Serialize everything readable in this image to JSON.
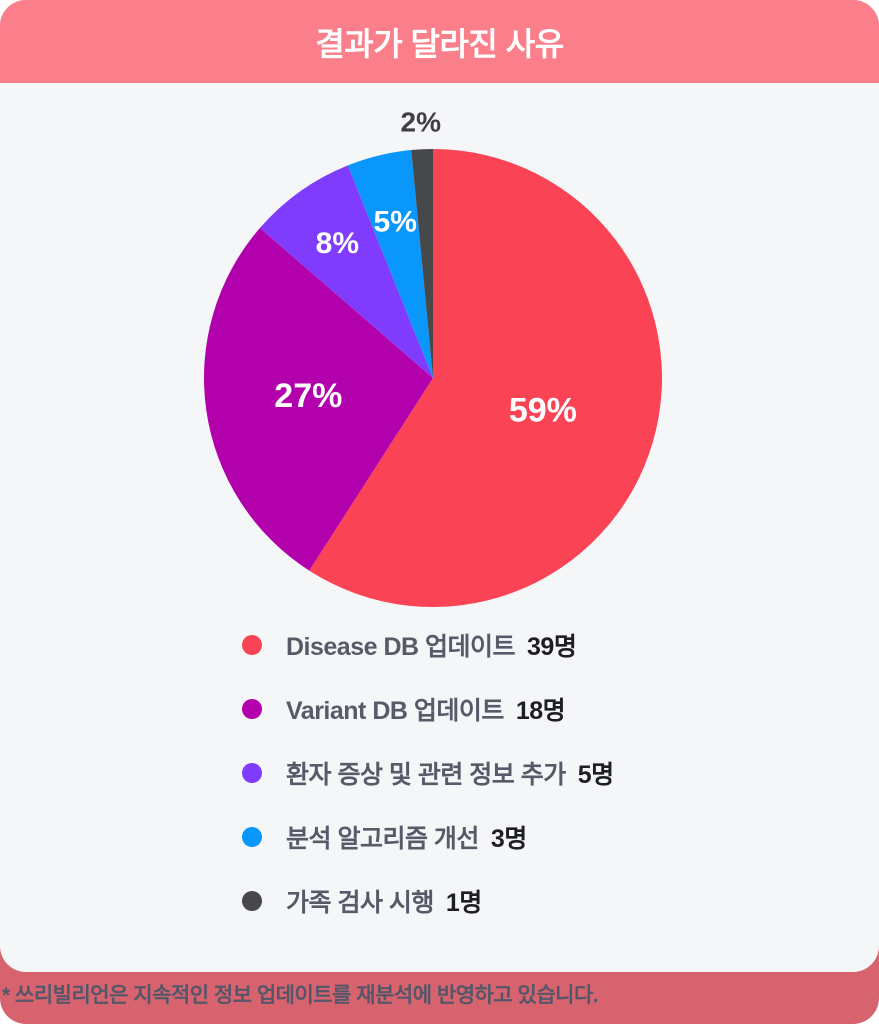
{
  "header": {
    "title": "결과가 달라진 사유"
  },
  "footer": {
    "note": "* 쓰리빌리언은 지속적인 정보 업데이트를 재분석에 반영하고 있습니다."
  },
  "colors": {
    "header_bg": "#FB7E8B",
    "footer_bg": "#D7636F",
    "card_bg": "#F5F6F8",
    "title_text": "#FFFFFF",
    "legend_label": "#575B69",
    "legend_count": "#1E1F24",
    "footer_text": "#545769",
    "inside_label": "#FFFFFF",
    "outside_label": "#3F3F41"
  },
  "chart_data": {
    "type": "pie",
    "title": "결과가 달라진 사유",
    "categories": [
      "Disease DB 업데이트",
      "Variant DB 업데이트",
      "환자 증상 및 관련 정보 추가",
      "분석 알고리즘 개선",
      "가족 검사 시행"
    ],
    "values": [
      39,
      18,
      5,
      3,
      1
    ],
    "unit": "명",
    "count_labels": [
      "39명",
      "18명",
      "5명",
      "3명",
      "1명"
    ],
    "percent_labels": [
      "59%",
      "27%",
      "8%",
      "5%",
      "2%"
    ],
    "colors": [
      "#FB4356",
      "#B200AC",
      "#7F3CFC",
      "#0997FB",
      "#47484A"
    ],
    "legend_position": "bottom-left",
    "layout": {
      "start_angle_deg": 0,
      "radius": 229,
      "label_radius_factors": [
        0.5,
        0.55,
        0.72,
        0.7,
        1.12
      ],
      "label_font_px": [
        34,
        34,
        30,
        30,
        28
      ],
      "outside_label_index": 4
    }
  }
}
